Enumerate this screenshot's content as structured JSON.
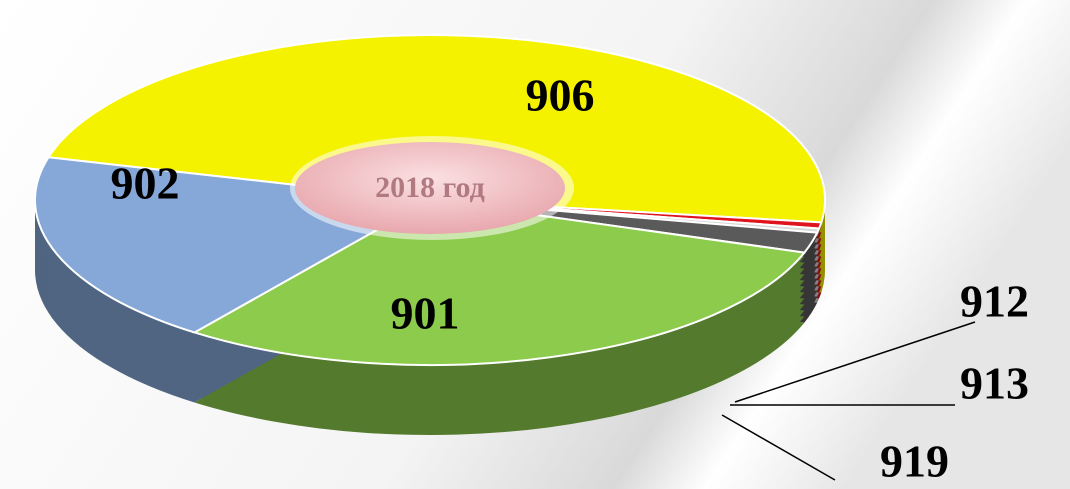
{
  "chart_data": {
    "type": "pie",
    "center_label": "2018 год",
    "categories": [
      "906",
      "912",
      "913",
      "919",
      "901",
      "902"
    ],
    "values": [
      48,
      0.6,
      0.4,
      2,
      30,
      19
    ],
    "colors": [
      "#f5f200",
      "#e0141e",
      "#d8d8d8",
      "#5a5a5a",
      "#8ccb4c",
      "#86a8d8"
    ]
  }
}
